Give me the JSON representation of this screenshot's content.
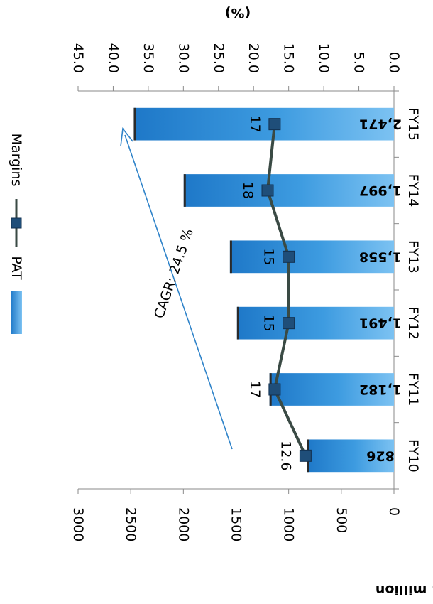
{
  "chart_data": {
    "type": "bar",
    "orientation": "rotated-90-clockwise",
    "categories": [
      "FY10",
      "FY11",
      "FY12",
      "FY13",
      "FY14",
      "FY15"
    ],
    "series": [
      {
        "name": "PAT",
        "type": "bar",
        "axis": "primary",
        "values": [
          826,
          1182,
          1491,
          1558,
          1997,
          2471
        ],
        "labels": [
          "826",
          "1,182",
          "1,491",
          "1,558",
          "1,997",
          "2,471"
        ],
        "color": "#3d9be0"
      },
      {
        "name": "Margins",
        "type": "line",
        "axis": "secondary",
        "values": [
          12.6,
          17,
          15,
          15,
          18,
          17
        ],
        "labels": [
          "12.6",
          "17",
          "15",
          "15",
          "18",
          "17"
        ],
        "color": "#3a4a44",
        "marker_color": "#1f4e79"
      }
    ],
    "primary_axis": {
      "label": "Rs. million",
      "range": [
        0,
        3000
      ],
      "ticks": [
        "0",
        "500",
        "1000",
        "1500",
        "2000",
        "2500",
        "3000"
      ]
    },
    "secondary_axis": {
      "label": "(%)",
      "range": [
        0,
        45
      ],
      "ticks": [
        "0.0",
        "5.0",
        "10.0",
        "15.0",
        "20.0",
        "25.0",
        "30.0",
        "35.0",
        "40.0",
        "45.0"
      ]
    },
    "annotation": "CAGR: 24.5 %",
    "legend_placement": "left",
    "grid": false
  }
}
